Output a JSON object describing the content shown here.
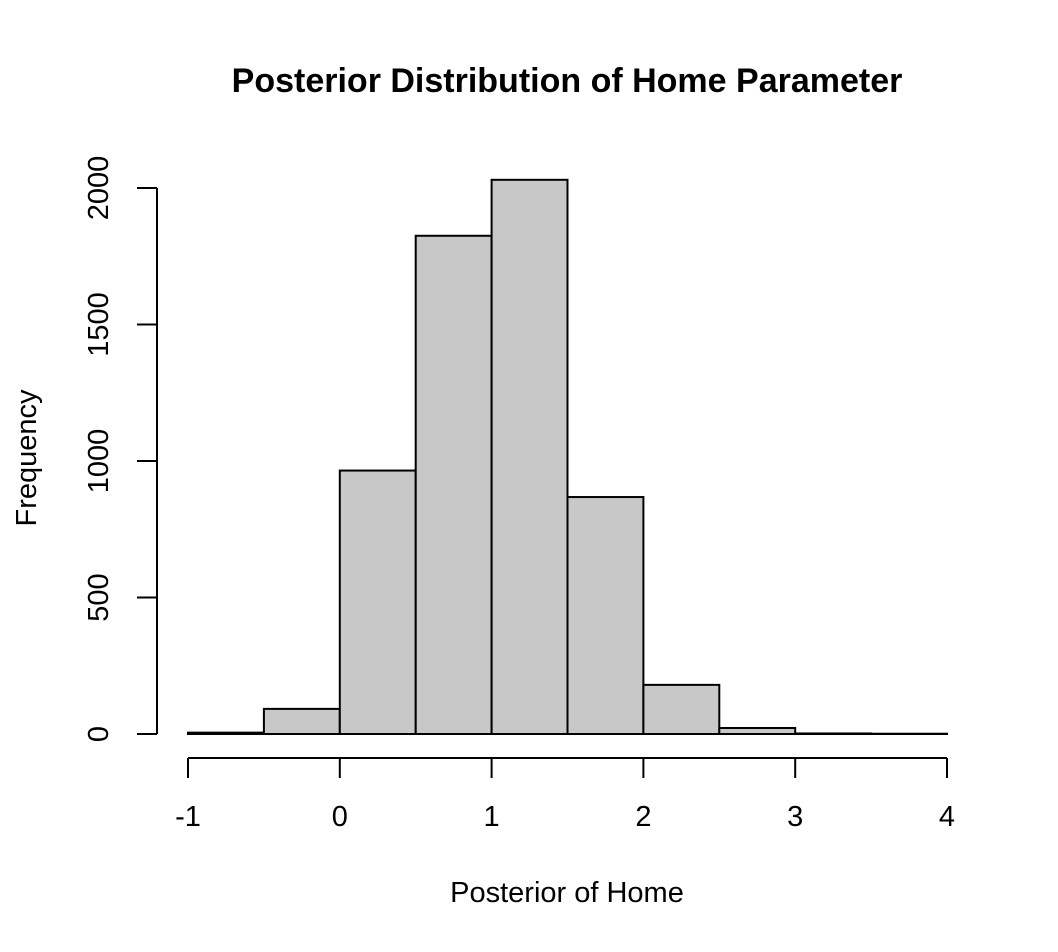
{
  "chart_data": {
    "type": "bar",
    "title": "Posterior Distribution of Home Parameter",
    "xlabel": "Posterior of Home",
    "ylabel": "Frequency",
    "xlim": [
      -1,
      4
    ],
    "ylim": [
      0,
      2000
    ],
    "x_ticks": [
      "-1",
      "0",
      "1",
      "2",
      "3",
      "4"
    ],
    "y_ticks": [
      "0",
      "500",
      "1000",
      "1500",
      "2000"
    ],
    "bins": [
      {
        "start": -1.0,
        "end": -0.5,
        "count": 5
      },
      {
        "start": -0.5,
        "end": 0.0,
        "count": 92
      },
      {
        "start": 0.0,
        "end": 0.5,
        "count": 965
      },
      {
        "start": 0.5,
        "end": 1.0,
        "count": 1825
      },
      {
        "start": 1.0,
        "end": 1.5,
        "count": 2030
      },
      {
        "start": 1.5,
        "end": 2.0,
        "count": 868
      },
      {
        "start": 2.0,
        "end": 2.5,
        "count": 180
      },
      {
        "start": 2.5,
        "end": 3.0,
        "count": 22
      },
      {
        "start": 3.0,
        "end": 3.5,
        "count": 2
      },
      {
        "start": 3.5,
        "end": 4.0,
        "count": 1
      }
    ],
    "grid": false,
    "legend": "none"
  }
}
